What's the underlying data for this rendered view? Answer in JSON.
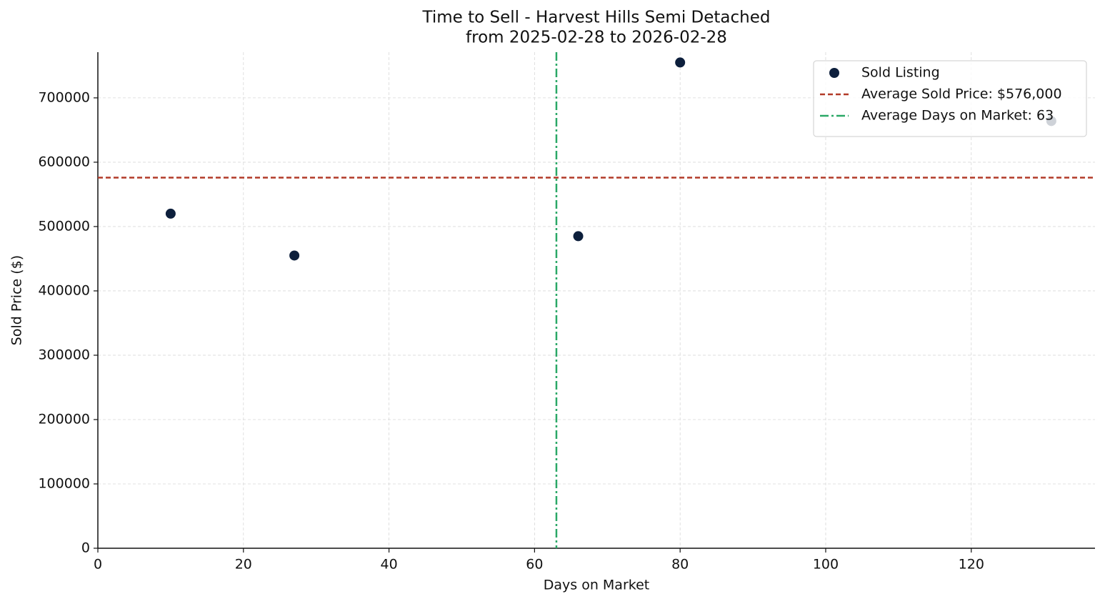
{
  "chart_data": {
    "type": "scatter",
    "title": "Time to Sell - Harvest Hills Semi Detached",
    "subtitle": "from 2025-02-28 to 2026-02-28",
    "x_label": "Days on Market",
    "y_label": "Sold Price ($)",
    "xlim": [
      0,
      137
    ],
    "ylim": [
      0,
      771000
    ],
    "xticks": [
      0,
      20,
      40,
      60,
      80,
      100,
      120
    ],
    "yticks": [
      0,
      100000,
      200000,
      300000,
      400000,
      500000,
      600000,
      700000
    ],
    "grid": true,
    "legend": "upper right",
    "series": [
      {
        "name": "Sold Listing",
        "color": "#0d1f3c",
        "x": [
          10,
          27,
          66,
          80,
          131
        ],
        "values": [
          520000,
          455000,
          485000,
          755000,
          664000
        ]
      }
    ],
    "reference_lines": [
      {
        "axis": "y",
        "value": 576000,
        "label": "Average Sold Price: $576,000",
        "color": "#b23a28",
        "style": "dashed"
      },
      {
        "axis": "x",
        "value": 63,
        "label": "Average Days on Market: 63",
        "color": "#2aa866",
        "style": "dashdot"
      }
    ]
  }
}
